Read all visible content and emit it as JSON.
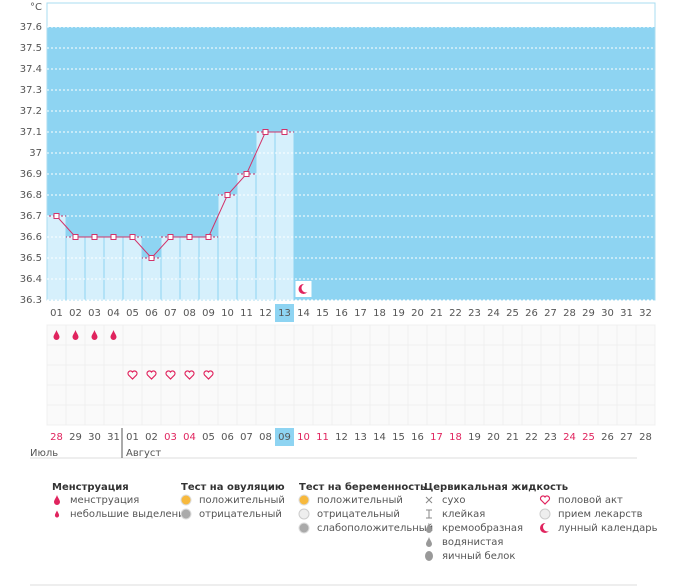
{
  "chart_data": {
    "type": "line",
    "y_unit": "°C",
    "categories": [
      "01",
      "02",
      "03",
      "04",
      "05",
      "06",
      "07",
      "08",
      "09",
      "10",
      "11",
      "12",
      "13",
      "14",
      "15",
      "16",
      "17",
      "18",
      "19",
      "20",
      "21",
      "22",
      "23",
      "24",
      "25",
      "26",
      "27",
      "28",
      "29",
      "30",
      "31",
      "32"
    ],
    "values": [
      36.7,
      36.6,
      36.6,
      36.6,
      36.6,
      36.5,
      36.6,
      36.6,
      36.6,
      36.8,
      36.9,
      37.1,
      37.1,
      null,
      null,
      null,
      null,
      null,
      null,
      null,
      null,
      null,
      null,
      null,
      null,
      null,
      null,
      null,
      null,
      null,
      null,
      null
    ],
    "ylim": [
      36.3,
      37.6
    ],
    "yticks": [
      36.3,
      36.4,
      36.5,
      36.6,
      36.7,
      36.8,
      36.9,
      37,
      37.1,
      37.2,
      37.3,
      37.4,
      37.5,
      37.6
    ],
    "grid": true,
    "color": "#d2336a",
    "highlight_index": 12,
    "moon_index": 13,
    "symbol_rows": 5,
    "symbols": [
      {
        "icon": "drop",
        "row": 0,
        "days": [
          0,
          1,
          2,
          3
        ]
      },
      {
        "icon": "heart",
        "row": 2,
        "days": [
          4,
          5,
          6,
          7,
          8
        ]
      }
    ],
    "dates": [
      {
        "label": "28",
        "weekend": true
      },
      {
        "label": "29",
        "weekend": false
      },
      {
        "label": "30",
        "weekend": false
      },
      {
        "label": "31",
        "weekend": false
      },
      {
        "label": "01",
        "weekend": false
      },
      {
        "label": "02",
        "weekend": false
      },
      {
        "label": "03",
        "weekend": true
      },
      {
        "label": "04",
        "weekend": true
      },
      {
        "label": "05",
        "weekend": false
      },
      {
        "label": "06",
        "weekend": false
      },
      {
        "label": "07",
        "weekend": false
      },
      {
        "label": "08",
        "weekend": false
      },
      {
        "label": "09",
        "weekend": false
      },
      {
        "label": "10",
        "weekend": true
      },
      {
        "label": "11",
        "weekend": true
      },
      {
        "label": "12",
        "weekend": false
      },
      {
        "label": "13",
        "weekend": false
      },
      {
        "label": "14",
        "weekend": false
      },
      {
        "label": "15",
        "weekend": false
      },
      {
        "label": "16",
        "weekend": false
      },
      {
        "label": "17",
        "weekend": true
      },
      {
        "label": "18",
        "weekend": true
      },
      {
        "label": "19",
        "weekend": false
      },
      {
        "label": "20",
        "weekend": false
      },
      {
        "label": "21",
        "weekend": false
      },
      {
        "label": "22",
        "weekend": false
      },
      {
        "label": "23",
        "weekend": false
      },
      {
        "label": "24",
        "weekend": true
      },
      {
        "label": "25",
        "weekend": true
      },
      {
        "label": "26",
        "weekend": false
      },
      {
        "label": "27",
        "weekend": false
      },
      {
        "label": "28",
        "weekend": false
      }
    ],
    "months": [
      {
        "label": "Июль",
        "start": 0
      },
      {
        "label": "Август",
        "start": 4
      }
    ]
  },
  "legend": [
    {
      "title": "Менструация",
      "items": [
        {
          "icon": "drop",
          "text": "менструация"
        },
        {
          "icon": "small-drop",
          "text": "небольшие выделения"
        }
      ]
    },
    {
      "title": "Тест на овуляцию",
      "items": [
        {
          "icon": "orange-circle",
          "text": "положительный"
        },
        {
          "icon": "gray-circle",
          "text": "отрицательный"
        }
      ]
    },
    {
      "title": "Тест на беременность",
      "items": [
        {
          "icon": "orange-circle",
          "text": "положительный"
        },
        {
          "icon": "white-circle",
          "text": "отрицательный"
        },
        {
          "icon": "gray-circle",
          "text": "слабоположительный"
        }
      ]
    },
    {
      "title": "Цервикальная жидкость",
      "items": [
        {
          "icon": "cross",
          "text": "сухо"
        },
        {
          "icon": "t",
          "text": "клейкая"
        },
        {
          "icon": "gray-drop",
          "text": "кремообразная"
        },
        {
          "icon": "gray-drop",
          "text": "водянистая"
        },
        {
          "icon": "gray-oval",
          "text": "яичный белок"
        }
      ]
    },
    {
      "items": [
        {
          "icon": "heart",
          "text": "половой акт"
        },
        {
          "icon": "white-circle",
          "text": "прием лекарств"
        },
        {
          "icon": "moon",
          "text": "лунный календарь"
        }
      ]
    }
  ]
}
